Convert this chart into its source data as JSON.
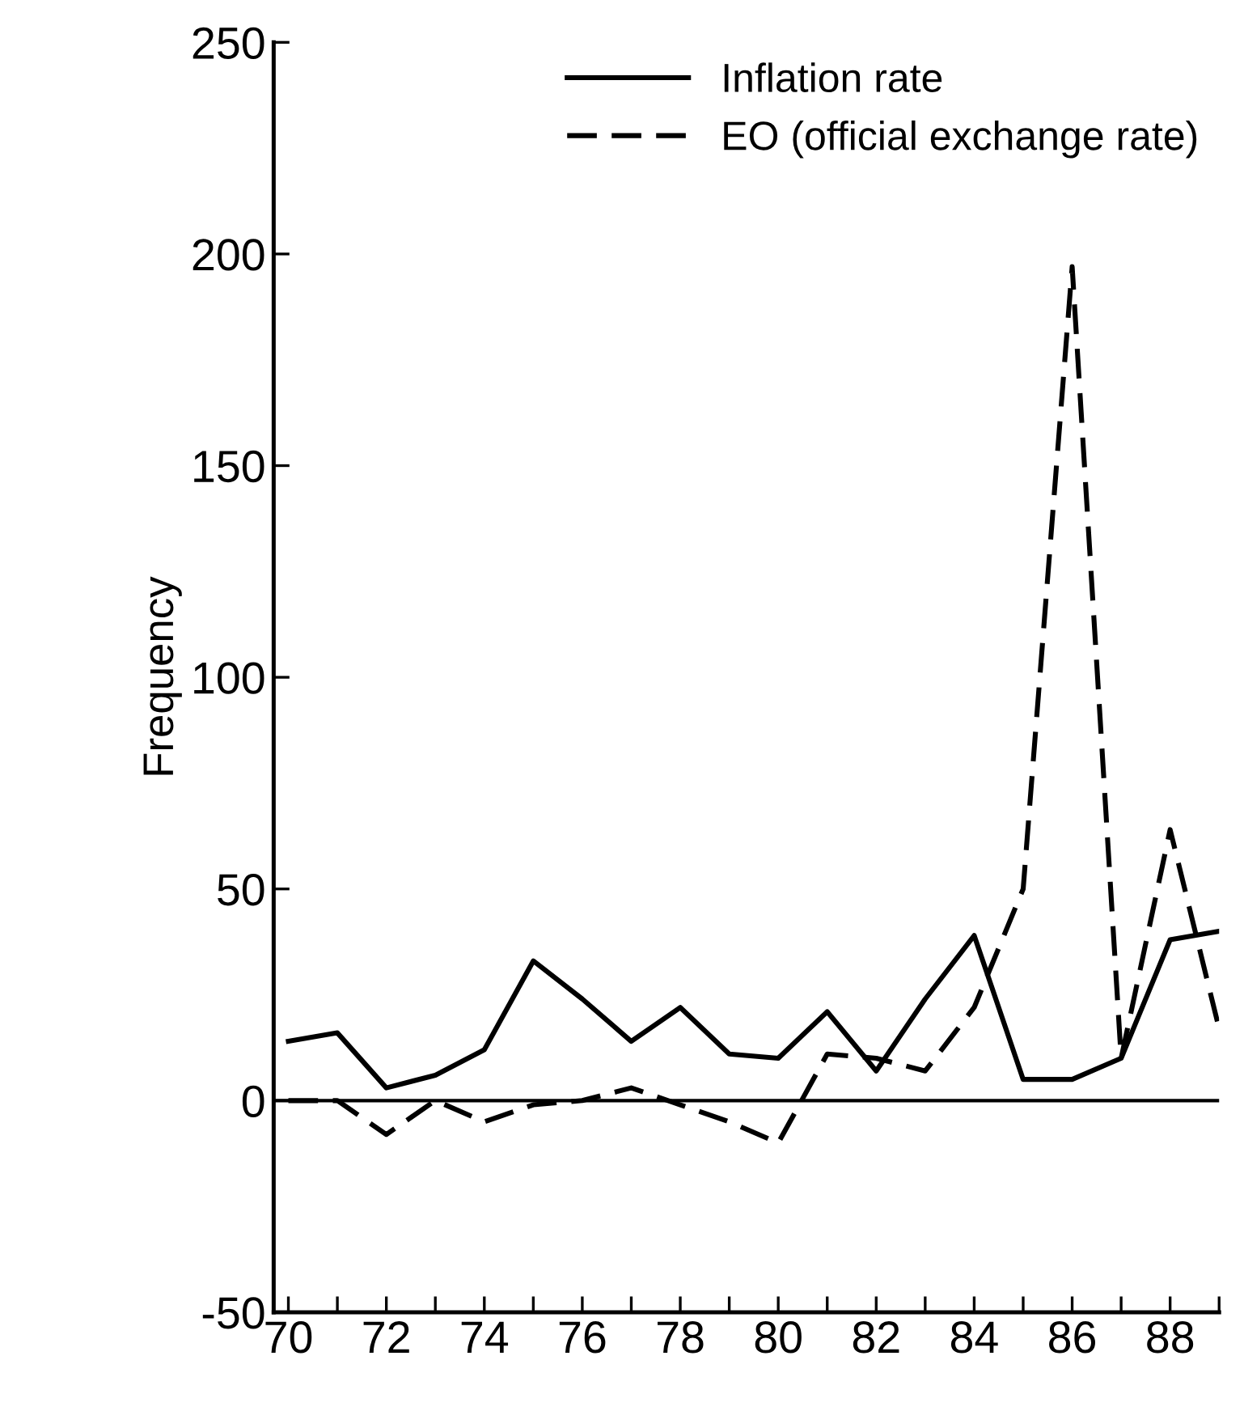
{
  "chart_data": {
    "type": "line",
    "ylabel": "Frequency",
    "x": [
      70,
      71,
      72,
      73,
      74,
      75,
      76,
      77,
      78,
      79,
      80,
      81,
      82,
      83,
      84,
      85,
      86,
      87,
      88,
      89
    ],
    "series": [
      {
        "name": "Inflation rate",
        "color": "#000000",
        "line_style": "solid",
        "values": [
          14,
          16,
          3,
          6,
          12,
          33,
          24,
          14,
          22,
          11,
          10,
          21,
          7,
          24,
          39,
          5,
          5,
          10,
          38,
          40
        ]
      },
      {
        "name": "EO (official exchange rate)",
        "color": "#000000",
        "line_style": "dashed",
        "values": [
          0,
          0,
          -8,
          0,
          -5,
          -1,
          0,
          3,
          -1,
          -5,
          -10,
          11,
          10,
          7,
          22,
          50,
          197,
          10,
          64,
          17
        ]
      }
    ],
    "xlim": [
      69.7,
      89
    ],
    "ylim": [
      -50,
      250
    ],
    "xticks": [
      70,
      {
        "value": 71,
        "label": null
      },
      72,
      {
        "value": 73,
        "label": null
      },
      74,
      {
        "value": 75,
        "label": null
      },
      76,
      {
        "value": 77,
        "label": null
      },
      78,
      {
        "value": 79,
        "label": null
      },
      80,
      {
        "value": 81,
        "label": null
      },
      82,
      {
        "value": 83,
        "label": null
      },
      84,
      {
        "value": 85,
        "label": null
      },
      86,
      {
        "value": 87,
        "label": null
      },
      88,
      {
        "value": 89,
        "label": null
      }
    ],
    "yticks": [
      -50,
      0,
      50,
      100,
      150,
      200,
      250
    ],
    "ref_lines": [
      {
        "axis": "y",
        "value": 0,
        "color": "#000000",
        "line_style": "solid"
      }
    ],
    "grid": false,
    "legend": "top right",
    "marker": "none"
  }
}
